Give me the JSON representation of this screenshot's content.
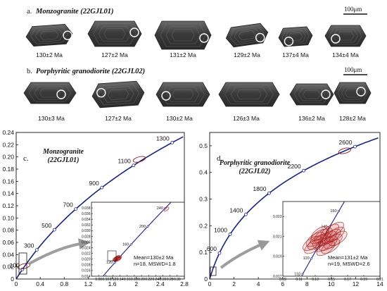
{
  "panel_a": {
    "letter": "a.",
    "title": "Monzogranite (22GJL01)",
    "scale_bar": "100μm",
    "ages": [
      "130±2 Ma",
      "127±2 Ma",
      "131±2 Ma",
      "129±2 Ma",
      "137±4 Ma",
      "134±4 Ma"
    ]
  },
  "panel_b": {
    "letter": "b.",
    "title": "Porphyritic granodiorite (22GJL02)",
    "scale_bar": "100μm",
    "ages": [
      "130±3 Ma",
      "127±2 Ma",
      "130±2 Ma",
      "126±3 Ma",
      "136±2 Ma",
      "128±2 Ma"
    ]
  },
  "chart_data": [
    {
      "type": "scatter",
      "panel": "c.",
      "sample_label": [
        "Monzogranite",
        "(22GJL01)"
      ],
      "x_ticks": [
        "0",
        "0.4",
        "0.8",
        "1.2",
        "1.6",
        "2",
        "2.4",
        "2.8"
      ],
      "y_ticks": [
        "0",
        "0.02",
        "0.04",
        "0.06",
        "0.08",
        "0.10",
        "0.12",
        "0.14",
        "0.16",
        "0.18",
        "0.20",
        "0.22",
        "0.24"
      ],
      "xlim": [
        0,
        2.8
      ],
      "ylim": [
        0,
        0.24
      ],
      "concordia_age_labels": [
        "100",
        "300",
        "500",
        "700",
        "900",
        "1100",
        "1300"
      ],
      "concordia_ages_ma": [
        100,
        300,
        500,
        700,
        900,
        1100,
        1300
      ],
      "main_ellipses": [
        {
          "x": 2.05,
          "y": 0.196
        },
        {
          "x": 0.13,
          "y": 0.021
        }
      ],
      "inset": {
        "x_ticks": [
          "0.08",
          "0.10",
          "0.12",
          "0.14",
          "0.16",
          "0.18",
          "0.20",
          "0.22",
          "0.24",
          "0.26",
          "0.28",
          "0.30"
        ],
        "y_ticks": [
          "0.014",
          "0.016",
          "0.018",
          "0.020",
          "0.022",
          "0.024",
          "0.026",
          "0.028",
          "0.030",
          "0.032",
          "0.034",
          "0.036",
          "0.038"
        ],
        "xlim": [
          0.06,
          0.32
        ],
        "ylim": [
          0.014,
          0.04
        ],
        "age_labels": [
          "120",
          "160",
          "200",
          "240"
        ],
        "ages_ma": [
          120,
          160,
          200,
          240
        ],
        "ellipses": [
          {
            "x": 0.27,
            "y": 0.0376
          },
          {
            "x": 0.13,
            "y": 0.0203
          },
          {
            "x": 0.134,
            "y": 0.0201
          },
          {
            "x": 0.128,
            "y": 0.0199
          },
          {
            "x": 0.131,
            "y": 0.0205
          },
          {
            "x": 0.136,
            "y": 0.0203
          },
          {
            "x": 0.129,
            "y": 0.0202
          },
          {
            "x": 0.132,
            "y": 0.02
          },
          {
            "x": 0.138,
            "y": 0.0204
          },
          {
            "x": 0.126,
            "y": 0.0201
          },
          {
            "x": 0.133,
            "y": 0.0206
          },
          {
            "x": 0.135,
            "y": 0.0199
          }
        ],
        "stats": [
          "Mean=130±2 Ma",
          "n=18, MSWD=1.8"
        ]
      }
    },
    {
      "type": "scatter",
      "panel": "d.",
      "sample_label": [
        "Porphyritic granodiorite",
        "(22GJL02)"
      ],
      "x_ticks": [
        "0",
        "2",
        "4",
        "6",
        "8",
        "10",
        "12",
        "14"
      ],
      "y_ticks": [
        "0",
        "0.1",
        "0.2",
        "0.3",
        "0.4",
        "0.5"
      ],
      "xlim": [
        0,
        14
      ],
      "ylim": [
        0,
        0.55
      ],
      "concordia_age_labels": [
        "600",
        "1000",
        "1400",
        "1800",
        "2200",
        "2600"
      ],
      "concordia_ages_ma": [
        600,
        1000,
        1400,
        1800,
        2200,
        2600
      ],
      "main_ellipses": [
        {
          "x": 11.1,
          "y": 0.481
        }
      ],
      "inset": {
        "x_ticks": [
          "0.09",
          "0.11",
          "0.13",
          "0.15",
          "0.17",
          "0.19",
          "0.21"
        ],
        "y_ticks": [
          "0.017",
          "0.019",
          "0.021",
          "0.023"
        ],
        "xlim": [
          0.09,
          0.21
        ],
        "ylim": [
          0.017,
          0.0245
        ],
        "age_labels": [
          "110",
          "120",
          "140",
          "150"
        ],
        "ages_ma": [
          110,
          120,
          140,
          150
        ],
        "ellipses": [
          {
            "x": 0.145,
            "y": 0.0208
          },
          {
            "x": 0.138,
            "y": 0.0206
          },
          {
            "x": 0.15,
            "y": 0.021
          },
          {
            "x": 0.132,
            "y": 0.0204
          },
          {
            "x": 0.155,
            "y": 0.0212
          },
          {
            "x": 0.141,
            "y": 0.0202
          },
          {
            "x": 0.128,
            "y": 0.02
          },
          {
            "x": 0.148,
            "y": 0.0215
          },
          {
            "x": 0.135,
            "y": 0.021
          },
          {
            "x": 0.152,
            "y": 0.0205
          },
          {
            "x": 0.143,
            "y": 0.0198
          },
          {
            "x": 0.158,
            "y": 0.0208
          },
          {
            "x": 0.136,
            "y": 0.0213
          },
          {
            "x": 0.146,
            "y": 0.0203
          },
          {
            "x": 0.13,
            "y": 0.0207
          },
          {
            "x": 0.149,
            "y": 0.02
          },
          {
            "x": 0.14,
            "y": 0.0211
          },
          {
            "x": 0.154,
            "y": 0.0217
          },
          {
            "x": 0.126,
            "y": 0.0203
          }
        ],
        "stats": [
          "Mean=131±2 Ma",
          "n=19, MSWD=2.6"
        ]
      }
    }
  ]
}
